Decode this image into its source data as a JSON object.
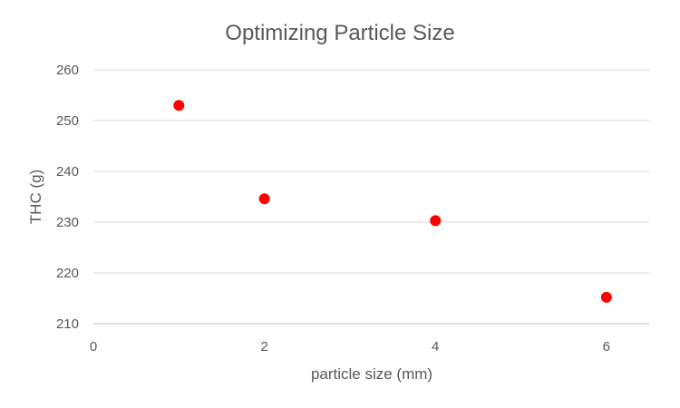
{
  "chart_data": {
    "type": "scatter",
    "title": "Optimizing Particle Size",
    "xlabel": "particle size (mm)",
    "ylabel": "THC (g)",
    "xlim": [
      0,
      6.5
    ],
    "ylim": [
      210,
      260
    ],
    "x_ticks": [
      0,
      2,
      4,
      6
    ],
    "y_ticks": [
      210,
      220,
      230,
      240,
      250,
      260
    ],
    "grid": "horizontal",
    "legend": "none",
    "series": [
      {
        "color": "#ff0000",
        "points": [
          {
            "x": 1,
            "y": 253
          },
          {
            "x": 2,
            "y": 234.6
          },
          {
            "x": 4,
            "y": 230.3
          },
          {
            "x": 6,
            "y": 215.2
          }
        ]
      }
    ]
  }
}
